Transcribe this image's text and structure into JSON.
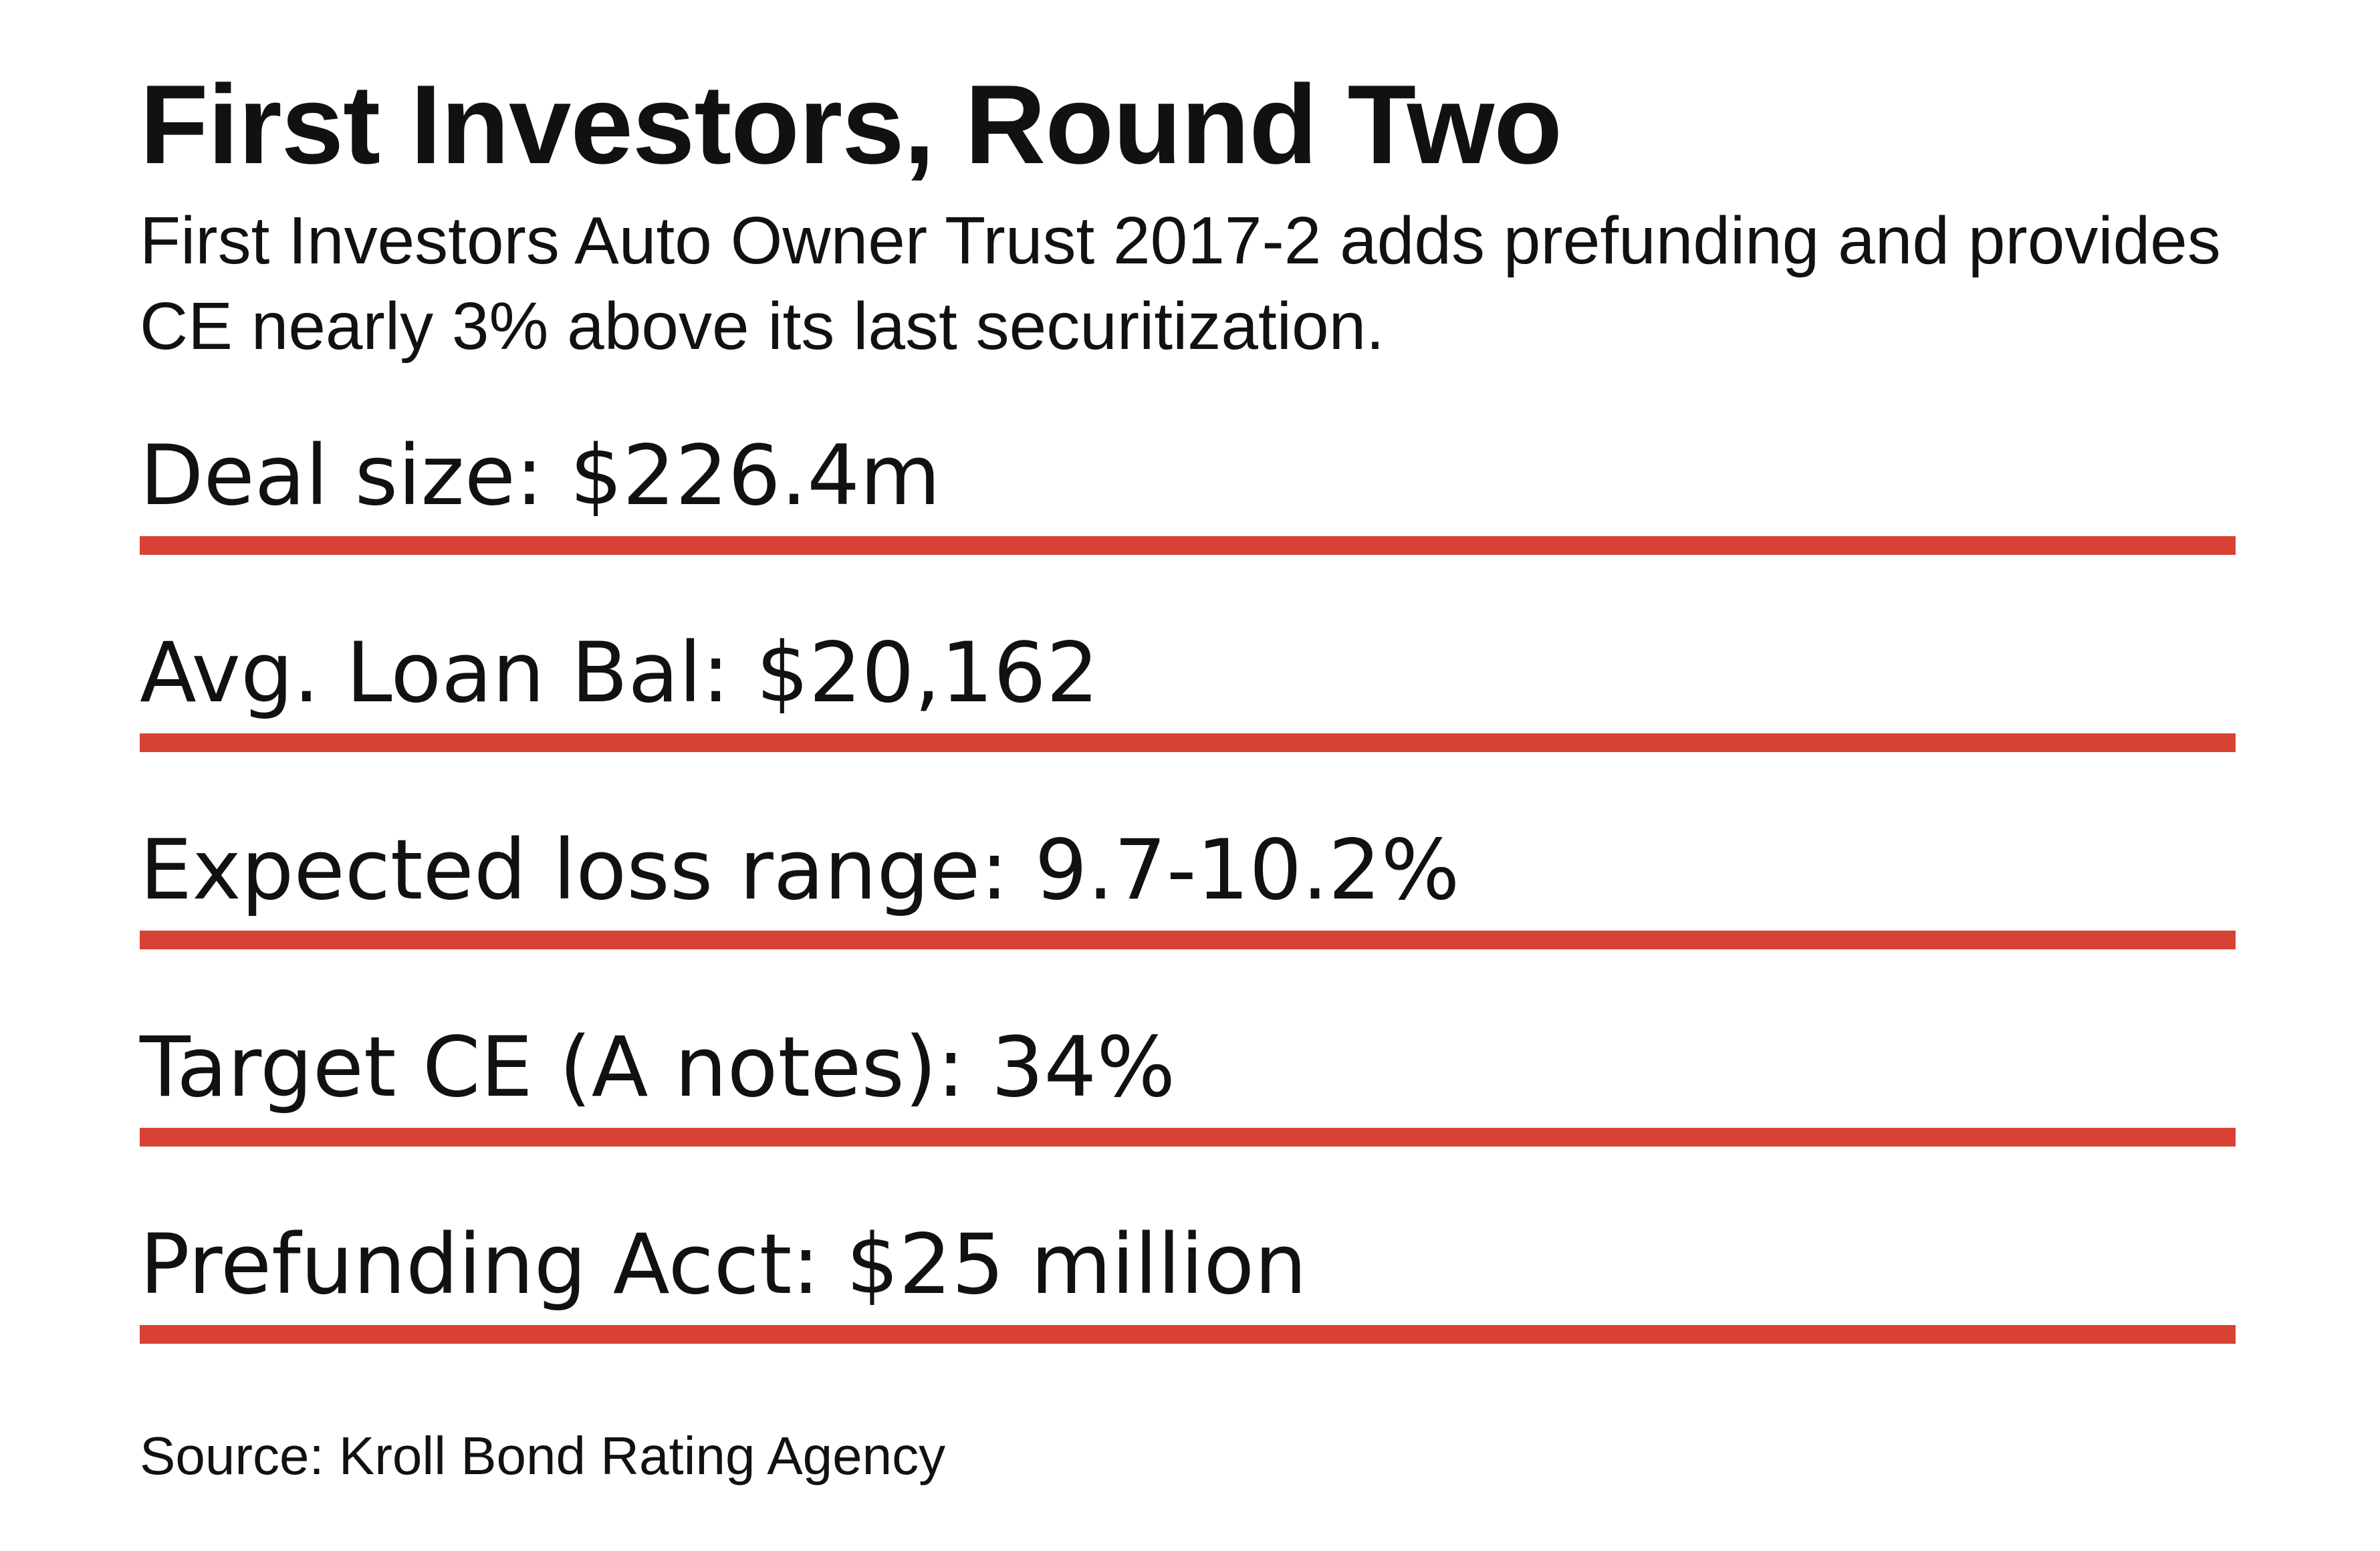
{
  "title": "First Investors, Round Two",
  "subtitle": "First Investors Auto Owner Trust 2017-2 adds prefunding and provides CE nearly 3% above its last securitization.",
  "stats": [
    "Deal size: $226.4m",
    "Avg. Loan Bal: $20,162",
    "Expected loss range: 9.7-10.2%",
    "Target CE (A notes): 34%",
    "Prefunding Acct: $25 million"
  ],
  "source": "Source: Kroll Bond Rating Agency",
  "colors": {
    "rule": "#d84234",
    "text": "#111111",
    "background": "#ffffff"
  }
}
